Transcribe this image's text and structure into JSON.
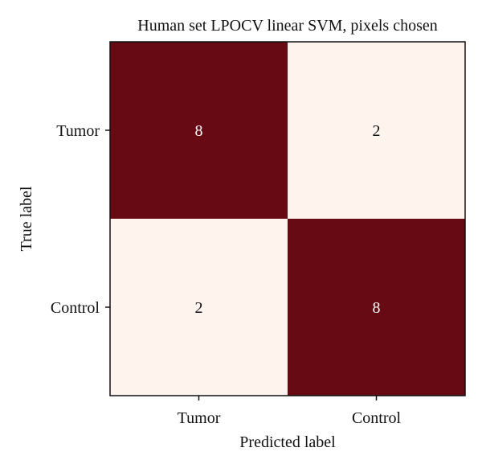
{
  "chart_data": {
    "type": "heatmap",
    "title": "Human set LPOCV linear SVM, pixels chosen",
    "xlabel": "Predicted label",
    "ylabel": "True label",
    "x_categories": [
      "Tumor",
      "Control"
    ],
    "y_categories": [
      "Tumor",
      "Control"
    ],
    "values": [
      [
        8,
        2
      ],
      [
        2,
        8
      ]
    ],
    "colors": {
      "high": "#680a13",
      "low": "#fff3ee",
      "text_on_high": "#ffffff",
      "text_on_low": "#111111"
    },
    "grid": false,
    "legend": "none"
  }
}
